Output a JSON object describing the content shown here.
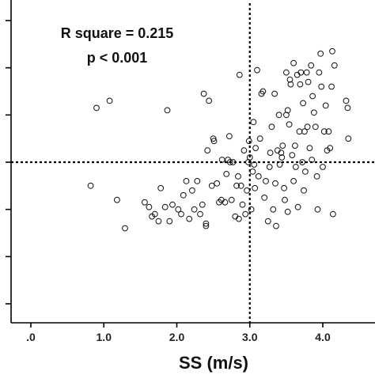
{
  "chart_data": {
    "type": "scatter",
    "title": "",
    "xlabel": "SS (m/s)",
    "ylabel": "",
    "xlim": [
      0.0,
      4.5
    ],
    "ylim": [
      0,
      1.8
    ],
    "x_ticks": [
      {
        "value": 0.0,
        "label": ".0"
      },
      {
        "value": 1.0,
        "label": "1.0"
      },
      {
        "value": 2.0,
        "label": "2.0"
      },
      {
        "value": 3.0,
        "label": "3.0"
      },
      {
        "value": 4.0,
        "label": "4.0"
      }
    ],
    "y_ticks": [
      0.2,
      0.4,
      0.6,
      0.8,
      1.0,
      1.2,
      1.4
    ],
    "reference_lines": {
      "x": 3.0,
      "y": 0.8
    },
    "annotations": [
      "R square = 0.215",
      "p < 0.001"
    ],
    "grid": false,
    "marker": "open-circle",
    "points": [
      [
        0.82,
        0.7
      ],
      [
        0.9,
        1.03
      ],
      [
        1.08,
        1.06
      ],
      [
        1.18,
        0.64
      ],
      [
        1.29,
        0.52
      ],
      [
        1.56,
        0.63
      ],
      [
        1.62,
        0.61
      ],
      [
        1.66,
        0.57
      ],
      [
        1.7,
        0.58
      ],
      [
        1.75,
        0.55
      ],
      [
        1.78,
        0.69
      ],
      [
        1.84,
        0.61
      ],
      [
        1.87,
        1.02
      ],
      [
        1.9,
        0.55
      ],
      [
        1.94,
        0.62
      ],
      [
        2.02,
        0.6
      ],
      [
        2.06,
        0.58
      ],
      [
        2.09,
        0.66
      ],
      [
        2.13,
        0.72
      ],
      [
        2.17,
        0.56
      ],
      [
        2.21,
        0.68
      ],
      [
        2.24,
        0.6
      ],
      [
        2.28,
        0.72
      ],
      [
        2.32,
        0.58
      ],
      [
        2.35,
        0.62
      ],
      [
        2.37,
        1.09
      ],
      [
        2.4,
        0.54
      ],
      [
        2.4,
        0.53
      ],
      [
        2.42,
        0.85
      ],
      [
        2.44,
        1.06
      ],
      [
        2.48,
        0.7
      ],
      [
        2.5,
        0.9
      ],
      [
        2.51,
        0.89
      ],
      [
        2.55,
        0.71
      ],
      [
        2.58,
        0.63
      ],
      [
        2.61,
        0.64
      ],
      [
        2.62,
        0.81
      ],
      [
        2.66,
        0.63
      ],
      [
        2.68,
        0.75
      ],
      [
        2.7,
        0.81
      ],
      [
        2.72,
        0.91
      ],
      [
        2.73,
        0.8
      ],
      [
        2.75,
        0.64
      ],
      [
        2.77,
        0.8
      ],
      [
        2.8,
        0.57
      ],
      [
        2.82,
        0.7
      ],
      [
        2.84,
        0.74
      ],
      [
        2.85,
        0.56
      ],
      [
        2.86,
        1.17
      ],
      [
        2.88,
        0.7
      ],
      [
        2.9,
        0.62
      ],
      [
        2.92,
        0.85
      ],
      [
        2.94,
        0.58
      ],
      [
        2.96,
        0.68
      ],
      [
        2.98,
        0.8
      ],
      [
        2.99,
        0.89
      ],
      [
        3.0,
        0.82
      ],
      [
        3.02,
        0.6
      ],
      [
        3.04,
        0.76
      ],
      [
        3.05,
        0.97
      ],
      [
        3.06,
        0.79
      ],
      [
        3.07,
        0.69
      ],
      [
        3.08,
        0.86
      ],
      [
        3.1,
        1.19
      ],
      [
        3.12,
        0.74
      ],
      [
        3.14,
        0.9
      ],
      [
        3.16,
        1.09
      ],
      [
        3.18,
        1.1
      ],
      [
        3.2,
        0.65
      ],
      [
        3.22,
        0.72
      ],
      [
        3.25,
        0.55
      ],
      [
        3.27,
        0.78
      ],
      [
        3.28,
        0.84
      ],
      [
        3.3,
        0.95
      ],
      [
        3.32,
        0.6
      ],
      [
        3.34,
        1.09
      ],
      [
        3.35,
        0.71
      ],
      [
        3.36,
        0.53
      ],
      [
        3.38,
        0.85
      ],
      [
        3.4,
        1.0
      ],
      [
        3.41,
        0.79
      ],
      [
        3.43,
        0.84
      ],
      [
        3.44,
        0.82
      ],
      [
        3.45,
        0.87
      ],
      [
        3.47,
        0.69
      ],
      [
        3.48,
        0.64
      ],
      [
        3.5,
        1.18
      ],
      [
        3.5,
        1.0
      ],
      [
        3.52,
        1.02
      ],
      [
        3.52,
        0.59
      ],
      [
        3.54,
        0.96
      ],
      [
        3.55,
        1.15
      ],
      [
        3.56,
        1.13
      ],
      [
        3.58,
        0.83
      ],
      [
        3.6,
        1.22
      ],
      [
        3.6,
        0.72
      ],
      [
        3.62,
        0.87
      ],
      [
        3.63,
        0.78
      ],
      [
        3.65,
        1.17
      ],
      [
        3.66,
        0.61
      ],
      [
        3.68,
        0.93
      ],
      [
        3.69,
        1.13
      ],
      [
        3.7,
        1.18
      ],
      [
        3.72,
        0.8
      ],
      [
        3.73,
        1.05
      ],
      [
        3.74,
        0.68
      ],
      [
        3.75,
        0.93
      ],
      [
        3.76,
        0.76
      ],
      [
        3.78,
        1.18
      ],
      [
        3.79,
        0.95
      ],
      [
        3.8,
        1.14
      ],
      [
        3.82,
        0.86
      ],
      [
        3.84,
        1.21
      ],
      [
        3.85,
        0.81
      ],
      [
        3.86,
        1.08
      ],
      [
        3.88,
        1.01
      ],
      [
        3.9,
        0.95
      ],
      [
        3.92,
        0.74
      ],
      [
        3.93,
        0.6
      ],
      [
        3.95,
        1.18
      ],
      [
        3.97,
        1.26
      ],
      [
        3.98,
        1.12
      ],
      [
        4.0,
        0.78
      ],
      [
        4.02,
        0.93
      ],
      [
        4.04,
        1.04
      ],
      [
        4.06,
        0.85
      ],
      [
        4.08,
        0.93
      ],
      [
        4.1,
        0.86
      ],
      [
        4.12,
        1.12
      ],
      [
        4.13,
        1.27
      ],
      [
        4.14,
        0.58
      ],
      [
        4.16,
        1.21
      ],
      [
        4.32,
        1.06
      ],
      [
        4.34,
        1.03
      ],
      [
        4.35,
        0.9
      ]
    ]
  }
}
